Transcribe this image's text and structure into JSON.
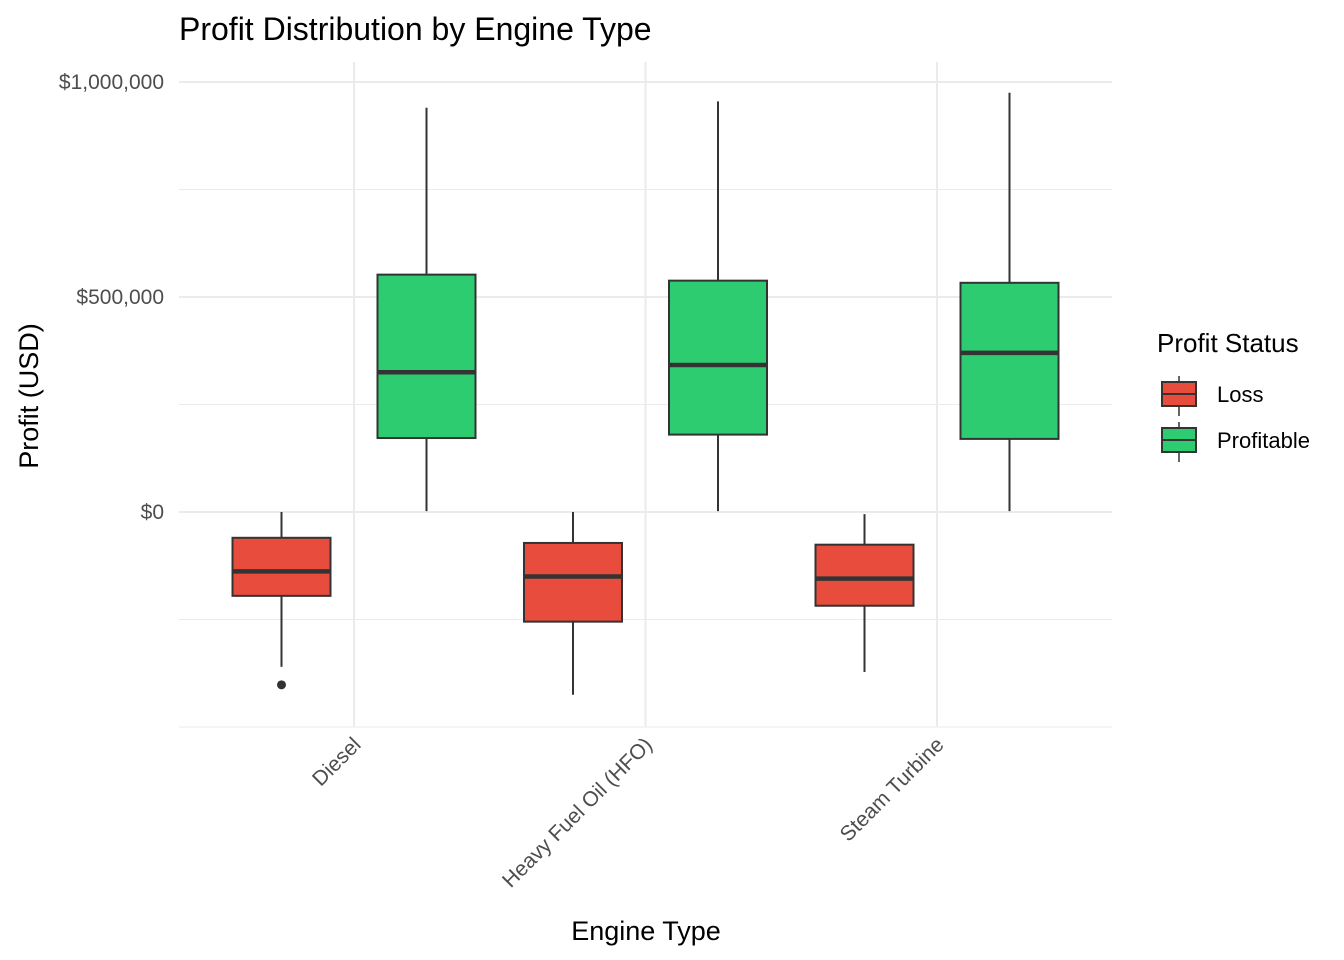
{
  "chart_data": {
    "type": "box",
    "title": "Profit Distribution by Engine Type",
    "xlabel": "Engine Type",
    "ylabel": "Profit (USD)",
    "categories": [
      "Diesel",
      "Heavy Fuel Oil (HFO)",
      "Steam Turbine"
    ],
    "ylim": [
      -500000,
      1050000
    ],
    "yticks": [
      0,
      500000,
      1000000
    ],
    "ytick_labels": [
      "$0",
      "$500,000",
      "$1,000,000"
    ],
    "grid": true,
    "legend": {
      "title": "Profit Status",
      "position": "right"
    },
    "series": [
      {
        "name": "Loss",
        "color": "#e74c3c",
        "boxes": [
          {
            "min": -360000,
            "q1": -195000,
            "median": -138000,
            "q3": -60000,
            "max": 0,
            "outliers": [
              -402000
            ]
          },
          {
            "min": -425000,
            "q1": -255000,
            "median": -150000,
            "q3": -72000,
            "max": 0,
            "outliers": []
          },
          {
            "min": -372000,
            "q1": -218000,
            "median": -155000,
            "q3": -76000,
            "max": -5000,
            "outliers": []
          }
        ]
      },
      {
        "name": "Profitable",
        "color": "#2ecc71",
        "boxes": [
          {
            "min": 2000,
            "q1": 172000,
            "median": 325000,
            "q3": 552000,
            "max": 940000,
            "outliers": []
          },
          {
            "min": 2000,
            "q1": 180000,
            "median": 342000,
            "q3": 538000,
            "max": 955000,
            "outliers": []
          },
          {
            "min": 2000,
            "q1": 170000,
            "median": 370000,
            "q3": 533000,
            "max": 975000,
            "outliers": []
          }
        ]
      }
    ]
  }
}
